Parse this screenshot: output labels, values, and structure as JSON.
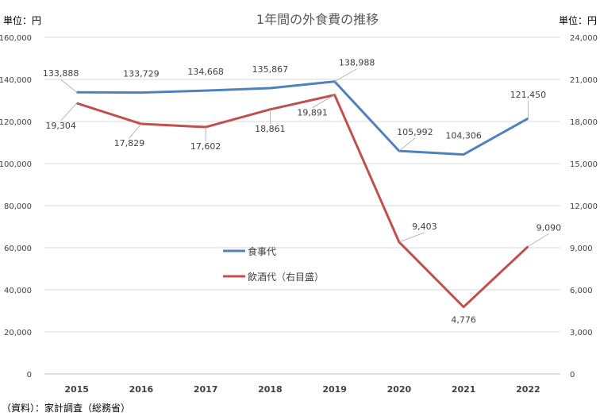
{
  "chart_data": {
    "type": "line",
    "title": "1年間の外食費の推移",
    "left_unit": "単位：円",
    "right_unit": "単位：円",
    "source": "（資料）：家計調査（総務省）",
    "categories": [
      "2015",
      "2016",
      "2017",
      "2018",
      "2019",
      "2020",
      "2021",
      "2022"
    ],
    "y_left": {
      "min": 0,
      "max": 160000,
      "step": 20000,
      "ticks": [
        "0",
        "20,000",
        "40,000",
        "60,000",
        "80,000",
        "100,000",
        "120,000",
        "140,000",
        "160,000"
      ]
    },
    "y_right": {
      "min": 0,
      "max": 24000,
      "step": 3000,
      "ticks": [
        "0",
        "3,000",
        "6,000",
        "9,000",
        "12,000",
        "15,000",
        "18,000",
        "21,000",
        "24,000"
      ]
    },
    "grid": true,
    "legend_position": "center-left",
    "series": [
      {
        "name": "食事代",
        "axis": "left",
        "color": "#4f81bd",
        "values": [
          133888,
          133729,
          134668,
          135867,
          138988,
          105992,
          104306,
          121450
        ],
        "labels": [
          "133,888",
          "133,729",
          "134,668",
          "135,867",
          "138,988",
          "105,992",
          "104,306",
          "121,450"
        ]
      },
      {
        "name": "飲酒代（右目盛）",
        "axis": "right",
        "color": "#c0504d",
        "values": [
          19304,
          17829,
          17602,
          18861,
          19891,
          9403,
          4776,
          9090
        ],
        "labels": [
          "19,304",
          "17,829",
          "17,602",
          "18,861",
          "19,891",
          "9,403",
          "4,776",
          "9,090"
        ]
      }
    ]
  }
}
